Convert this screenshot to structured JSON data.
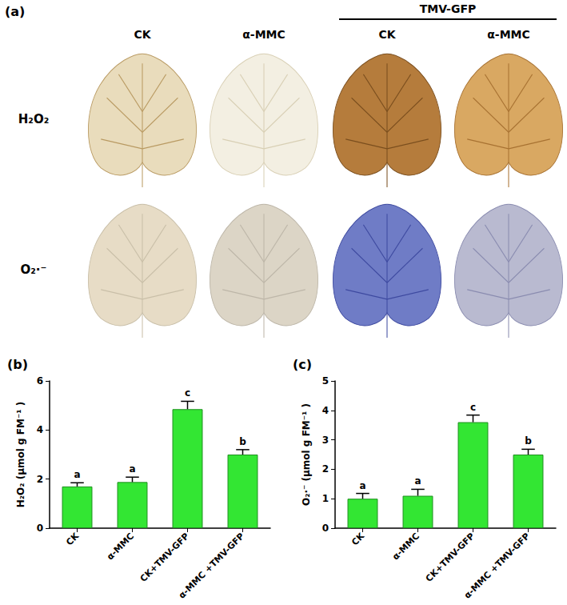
{
  "panel_a": {
    "label": "(a)",
    "group_label": "TMV-GFP",
    "columns": [
      "CK",
      "α-MMC",
      "CK",
      "α-MMC"
    ],
    "rows": [
      "H₂O₂",
      "O₂·⁻"
    ]
  },
  "chart_data": [
    {
      "type": "bar",
      "title": "(b)",
      "y_label": "H₂O₂ (μmol g FM⁻¹ )",
      "categories": [
        "CK",
        "α-MMC",
        "CK+TMV-GFP",
        "α-MMC +TMV-GFP"
      ],
      "values": [
        1.7,
        1.88,
        4.85,
        3.0
      ],
      "errors": [
        0.15,
        0.2,
        0.32,
        0.2
      ],
      "significance_letters": [
        "a",
        "a",
        "c",
        "b"
      ],
      "color": "#33e633",
      "ylim": [
        0,
        6
      ],
      "yticks": [
        0,
        2,
        4,
        6
      ],
      "grid": false
    },
    {
      "type": "bar",
      "title": "(c)",
      "y_label": "O₂·⁻ (μmol g FM⁻¹ )",
      "categories": [
        "CK",
        "α-MMC",
        "CK+TMV-GFP",
        "α-MMC +TMV-GFP"
      ],
      "values": [
        1.0,
        1.1,
        3.6,
        2.5
      ],
      "errors": [
        0.18,
        0.22,
        0.24,
        0.18
      ],
      "significance_letters": [
        "a",
        "a",
        "c",
        "b"
      ],
      "color": "#33e633",
      "ylim": [
        0,
        5
      ],
      "yticks": [
        0,
        1,
        2,
        3,
        4,
        5
      ],
      "grid": false
    }
  ]
}
